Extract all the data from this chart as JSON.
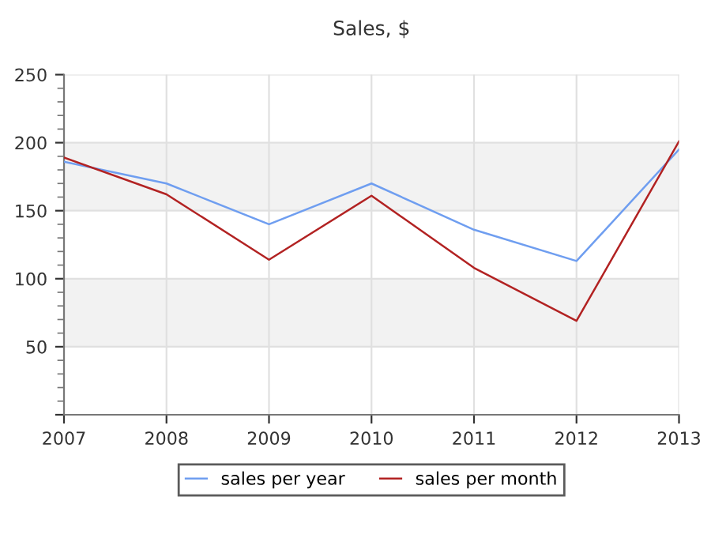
{
  "chart_data": {
    "type": "line",
    "title": "Sales, $",
    "x": [
      2007,
      2008,
      2009,
      2010,
      2011,
      2012,
      2013
    ],
    "series": [
      {
        "name": "sales per year",
        "color": "#6f9ef0",
        "values": [
          186,
          170,
          140,
          170,
          136,
          113,
          195
        ]
      },
      {
        "name": "sales per month",
        "color": "#b22222",
        "values": [
          189,
          162,
          114,
          161,
          108,
          69,
          201
        ]
      }
    ],
    "xlim": [
      2007,
      2013
    ],
    "xticks": [
      2007,
      2008,
      2009,
      2010,
      2011,
      2012,
      2013
    ],
    "ylim": [
      0,
      250
    ],
    "yticks": [
      {
        "value": 0,
        "label": null
      },
      50,
      100,
      150,
      200,
      250
    ],
    "bands": [
      {
        "axis": "y",
        "from": 50,
        "to": 100,
        "color": "#f2f2f2"
      },
      {
        "axis": "y",
        "from": 150,
        "to": 200,
        "color": "#f2f2f2"
      }
    ],
    "grid": true,
    "legend": "bottom",
    "marker": "none",
    "line_style": "solid"
  }
}
